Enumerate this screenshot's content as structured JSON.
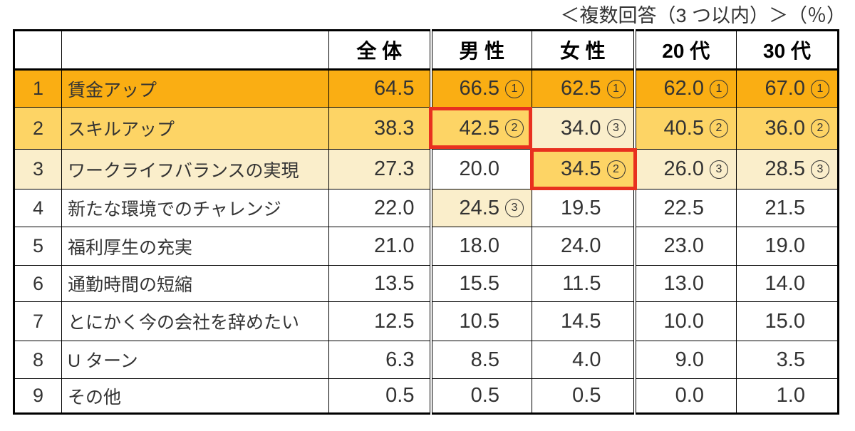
{
  "note": "＜複数回答（3 つ以内）＞（％）",
  "colors": {
    "rank1_fill": "#FAAE13",
    "rank2_fill": "#FDD465",
    "rank3_fill": "#FAEECB",
    "highlight_border": "#E8301F",
    "table_border": "#000000",
    "text": "#333333"
  },
  "table": {
    "headers": [
      "",
      "",
      "全 体",
      "男 性",
      "女 性",
      "20 代",
      "30 代"
    ],
    "rows": [
      {
        "no": "1",
        "item": "賃金アップ",
        "total": "64.5",
        "tone": 1,
        "cells": [
          {
            "v": "66.5",
            "rank": "1"
          },
          {
            "v": "62.5",
            "rank": "1"
          },
          {
            "v": "62.0",
            "rank": "1"
          },
          {
            "v": "67.0",
            "rank": "1"
          }
        ]
      },
      {
        "no": "2",
        "item": "スキルアップ",
        "total": "38.3",
        "tone": 2,
        "cells": [
          {
            "v": "42.5",
            "rank": "2"
          },
          {
            "v": "34.0",
            "rank": "3"
          },
          {
            "v": "40.5",
            "rank": "2"
          },
          {
            "v": "36.0",
            "rank": "2"
          }
        ]
      },
      {
        "no": "3",
        "item": "ワークライフバランスの実現",
        "total": "27.3",
        "tone": 3,
        "cells": [
          {
            "v": "20.0",
            "rank": ""
          },
          {
            "v": "34.5",
            "rank": "2"
          },
          {
            "v": "26.0",
            "rank": "3"
          },
          {
            "v": "28.5",
            "rank": "3"
          }
        ]
      },
      {
        "no": "4",
        "item": "新たな環境でのチャレンジ",
        "total": "22.0",
        "tone": 0,
        "cells": [
          {
            "v": "24.5",
            "rank": "3"
          },
          {
            "v": "19.5",
            "rank": ""
          },
          {
            "v": "22.5",
            "rank": ""
          },
          {
            "v": "21.5",
            "rank": ""
          }
        ]
      },
      {
        "no": "5",
        "item": "福利厚生の充実",
        "total": "21.0",
        "tone": 0,
        "cells": [
          {
            "v": "18.0",
            "rank": ""
          },
          {
            "v": "24.0",
            "rank": ""
          },
          {
            "v": "23.0",
            "rank": ""
          },
          {
            "v": "19.0",
            "rank": ""
          }
        ]
      },
      {
        "no": "6",
        "item": "通勤時間の短縮",
        "total": "13.5",
        "tone": 0,
        "cells": [
          {
            "v": "15.5",
            "rank": ""
          },
          {
            "v": "11.5",
            "rank": ""
          },
          {
            "v": "13.0",
            "rank": ""
          },
          {
            "v": "14.0",
            "rank": ""
          }
        ]
      },
      {
        "no": "7",
        "item": "とにかく今の会社を辞めたい",
        "total": "12.5",
        "tone": 0,
        "cells": [
          {
            "v": "10.5",
            "rank": ""
          },
          {
            "v": "14.5",
            "rank": ""
          },
          {
            "v": "10.0",
            "rank": ""
          },
          {
            "v": "15.0",
            "rank": ""
          }
        ]
      },
      {
        "no": "8",
        "item": "U ターン",
        "total": "6.3",
        "tone": 0,
        "cells": [
          {
            "v": "8.5",
            "rank": ""
          },
          {
            "v": "4.0",
            "rank": ""
          },
          {
            "v": "9.0",
            "rank": ""
          },
          {
            "v": "3.5",
            "rank": ""
          }
        ]
      },
      {
        "no": "9",
        "item": "その他",
        "total": "0.5",
        "tone": 0,
        "cells": [
          {
            "v": "0.5",
            "rank": ""
          },
          {
            "v": "0.5",
            "rank": ""
          },
          {
            "v": "0.0",
            "rank": ""
          },
          {
            "v": "1.0",
            "rank": ""
          }
        ]
      }
    ]
  },
  "chart_data": {
    "type": "table",
    "title": "＜複数回答（3 つ以内）＞（％）",
    "unit": "%",
    "categories": [
      "賃金アップ",
      "スキルアップ",
      "ワークライフバランスの実現",
      "新たな環境でのチャレンジ",
      "福利厚生の充実",
      "通勤時間の短縮",
      "とにかく今の会社を辞めたい",
      "Uターン",
      "その他"
    ],
    "series": [
      {
        "name": "全体",
        "values": [
          64.5,
          38.3,
          27.3,
          22.0,
          21.0,
          13.5,
          12.5,
          6.3,
          0.5
        ]
      },
      {
        "name": "男性",
        "values": [
          66.5,
          42.5,
          20.0,
          24.5,
          18.0,
          15.5,
          10.5,
          8.5,
          0.5
        ]
      },
      {
        "name": "女性",
        "values": [
          62.5,
          34.0,
          34.5,
          19.5,
          24.0,
          11.5,
          14.5,
          4.0,
          0.5
        ]
      },
      {
        "name": "20代",
        "values": [
          62.0,
          40.5,
          26.0,
          22.5,
          23.0,
          13.0,
          10.0,
          9.0,
          0.0
        ]
      },
      {
        "name": "30代",
        "values": [
          67.0,
          36.0,
          28.5,
          21.5,
          19.0,
          14.0,
          15.0,
          3.5,
          1.0
        ]
      }
    ],
    "ranks": [
      {
        "series": "男性",
        "top3": [
          "賃金アップ",
          "スキルアップ",
          "新たな環境でのチャレンジ"
        ]
      },
      {
        "series": "女性",
        "top3": [
          "賃金アップ",
          "ワークライフバランスの実現",
          "スキルアップ"
        ]
      },
      {
        "series": "20代",
        "top3": [
          "賃金アップ",
          "スキルアップ",
          "ワークライフバランスの実現"
        ]
      },
      {
        "series": "30代",
        "top3": [
          "賃金アップ",
          "スキルアップ",
          "ワークライフバランスの実現"
        ]
      }
    ],
    "highlighted_cells": [
      {
        "series": "男性",
        "category": "スキルアップ",
        "value": 42.5,
        "rank": 2
      },
      {
        "series": "女性",
        "category": "ワークライフバランスの実現",
        "value": 34.5,
        "rank": 2
      }
    ]
  }
}
